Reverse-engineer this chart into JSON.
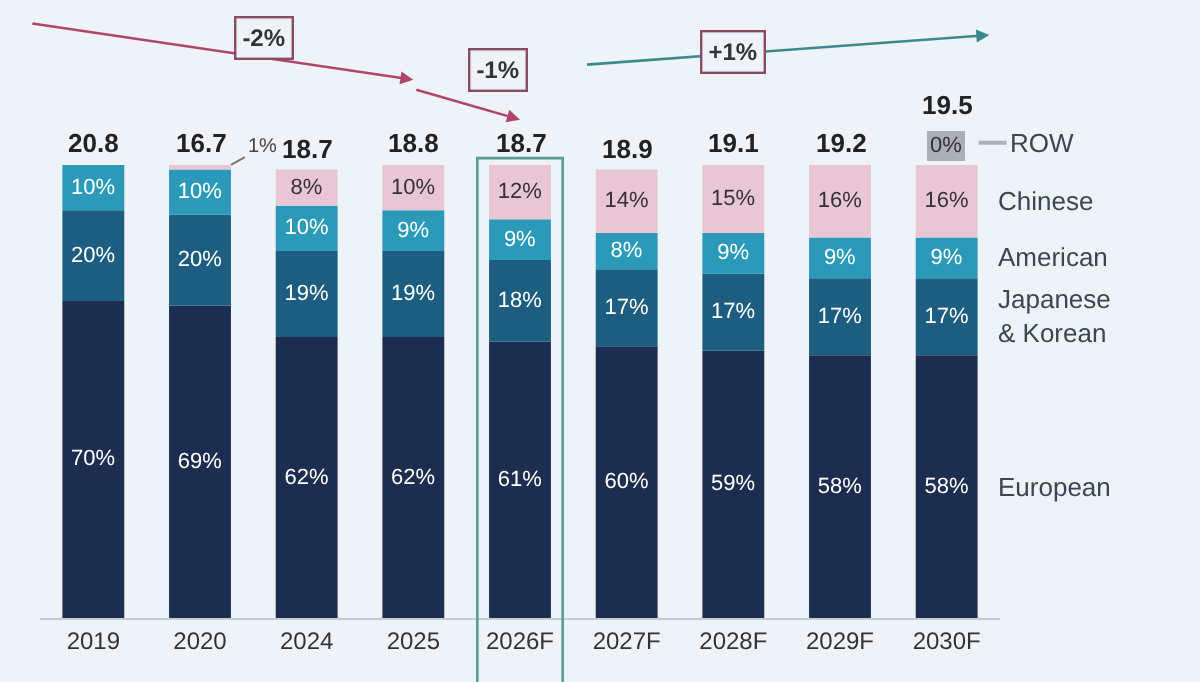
{
  "chart_data": {
    "type": "bar",
    "stacked": true,
    "categories": [
      "2019",
      "2020",
      "2024",
      "2025",
      "2026F",
      "2027F",
      "2028F",
      "2029F",
      "2030F"
    ],
    "series": [
      {
        "name": "European",
        "color": "#1c2d4f",
        "values": [
          70,
          69,
          62,
          62,
          61,
          60,
          59,
          58,
          58
        ],
        "value_labels": [
          "70%",
          "69%",
          "62%",
          "62%",
          "61%",
          "60%",
          "59%",
          "58%",
          "58%"
        ]
      },
      {
        "name": "Japanese\n& Korean",
        "color": "#1d5e80",
        "values": [
          20,
          20,
          19,
          19,
          18,
          17,
          17,
          17,
          17
        ],
        "value_labels": [
          "20%",
          "20%",
          "19%",
          "19%",
          "18%",
          "17%",
          "17%",
          "17%",
          "17%"
        ]
      },
      {
        "name": "American",
        "color": "#2a9ab8",
        "values": [
          10,
          10,
          10,
          9,
          9,
          8,
          9,
          9,
          9
        ],
        "value_labels": [
          "10%",
          "10%",
          "10%",
          "9%",
          "9%",
          "8%",
          "9%",
          "9%",
          "9%"
        ]
      },
      {
        "name": "Chinese",
        "color": "#e8c6d6",
        "values": [
          null,
          1,
          8,
          10,
          12,
          14,
          15,
          16,
          16
        ],
        "value_labels": [
          null,
          "1%",
          "8%",
          "10%",
          "12%",
          "14%",
          "15%",
          "16%",
          "16%"
        ]
      },
      {
        "name": "ROW",
        "color": "#a9b0b8",
        "values": [
          null,
          null,
          null,
          null,
          null,
          null,
          null,
          null,
          0
        ],
        "value_labels": [
          null,
          null,
          null,
          null,
          null,
          null,
          null,
          null,
          "0%"
        ]
      }
    ],
    "annotations": [
      "-2%",
      "-1%",
      "+1%",
      {
        "text": "20.8",
        "x": "2019",
        "y": 100
      },
      {
        "text": "16.7",
        "x": "2020",
        "y": 100
      },
      {
        "text": "18.7",
        "x": "2024",
        "y": 99
      },
      {
        "text": "18.8",
        "x": "2025",
        "y": 100
      },
      {
        "text": "18.7",
        "x": "2026F",
        "y": 100
      },
      {
        "text": "18.9",
        "x": "2027F",
        "y": 99
      },
      {
        "text": "19.1",
        "x": "2028F",
        "y": 100
      },
      {
        "text": "19.2",
        "x": "2029F",
        "y": 100
      },
      {
        "text": "19.5",
        "x": "2030F",
        "y": 100
      }
    ]
  }
}
